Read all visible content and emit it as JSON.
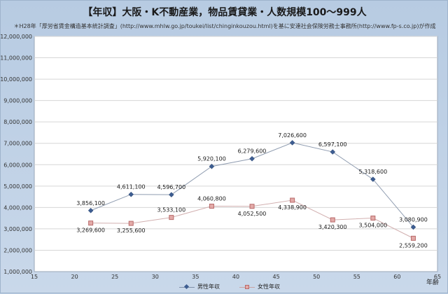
{
  "chart_data": {
    "type": "line",
    "title": "【年収】大阪・K不動産業，物品賃貸業・人数規模100～999人",
    "subtitle": "＊H28年「厚労省賃金構造基本統計調査」(http://www.mhlw.go.jp/toukei/list/chinginkouzou.html)を基に安達社会保険労務士事務所(http://www.fp-s.co.jp)が作成",
    "xlabel": "年齢",
    "ylabel": "",
    "xlim": [
      15,
      65
    ],
    "ylim": [
      1000000,
      12000000
    ],
    "x_ticks": [
      "15",
      "20",
      "25",
      "30",
      "35",
      "40",
      "45",
      "50",
      "55",
      "60",
      "65"
    ],
    "y_ticks": [
      "1,000,000",
      "2,000,000",
      "3,000,000",
      "4,000,000",
      "5,000,000",
      "6,000,000",
      "7,000,000",
      "8,000,000",
      "9,000,000",
      "10,000,000",
      "11,000,000",
      "12,000,000"
    ],
    "grid": true,
    "legend_position": "bottom",
    "series": [
      {
        "name": "男性年収",
        "color": "#3d5d91",
        "line_color": "#8f9cb0",
        "marker": "diamond",
        "points": [
          {
            "x": 22,
            "y": 3856100,
            "label": "3,856,100"
          },
          {
            "x": 27,
            "y": 4611100,
            "label": "4,611,100"
          },
          {
            "x": 32,
            "y": 4596700,
            "label": "4,596,700"
          },
          {
            "x": 37,
            "y": 5920100,
            "label": "5,920,100"
          },
          {
            "x": 42,
            "y": 6279600,
            "label": "6,279,600"
          },
          {
            "x": 47,
            "y": 7026600,
            "label": "7,026,600"
          },
          {
            "x": 52,
            "y": 6597100,
            "label": "6,597,100"
          },
          {
            "x": 57,
            "y": 5318600,
            "label": "5,318,600"
          },
          {
            "x": 62,
            "y": 3080900,
            "label": "3,080,900"
          }
        ]
      },
      {
        "name": "女性年収",
        "color": "#e3aaa8",
        "line_color": "#d2b0b0",
        "marker": "square",
        "points": [
          {
            "x": 22,
            "y": 3269600,
            "label": "3,269,600"
          },
          {
            "x": 27,
            "y": 3255600,
            "label": "3,255,600"
          },
          {
            "x": 32,
            "y": 3533100,
            "label": "3,533,100"
          },
          {
            "x": 37,
            "y": 4060800,
            "label": "4,060,800"
          },
          {
            "x": 42,
            "y": 4052500,
            "label": "4,052,500"
          },
          {
            "x": 47,
            "y": 4338900,
            "label": "4,338,900"
          },
          {
            "x": 52,
            "y": 3420300,
            "label": "3,420,300"
          },
          {
            "x": 57,
            "y": 3504000,
            "label": "3,504,000"
          },
          {
            "x": 62,
            "y": 2559200,
            "label": "2,559,200"
          }
        ]
      }
    ]
  }
}
